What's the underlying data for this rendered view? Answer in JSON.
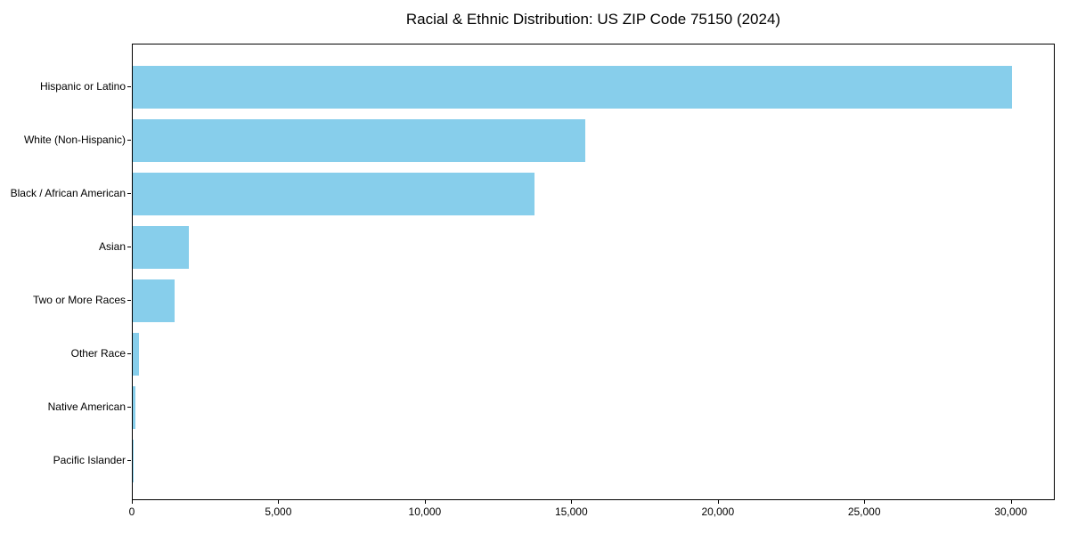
{
  "chart_data": {
    "type": "bar",
    "orientation": "horizontal",
    "title": "Racial & Ethnic Distribution: US ZIP Code 75150 (2024)",
    "categories": [
      "Hispanic or Latino",
      "White (Non-Hispanic)",
      "Black / African American",
      "Asian",
      "Two or More Races",
      "Other Race",
      "Native American",
      "Pacific Islander"
    ],
    "values": [
      30000,
      15450,
      13720,
      1915,
      1430,
      210,
      90,
      25
    ],
    "xlabel": "",
    "ylabel": "",
    "xlim": [
      0,
      31500
    ],
    "x_ticks": [
      0,
      5000,
      10000,
      15000,
      20000,
      25000,
      30000
    ],
    "x_tick_labels": [
      "0",
      "5,000",
      "10,000",
      "15,000",
      "20,000",
      "25,000",
      "30,000"
    ],
    "bar_color": "#87CEEB",
    "background_color": "#ffffff",
    "spine_color": "#000000",
    "grid": false,
    "legend": null
  }
}
